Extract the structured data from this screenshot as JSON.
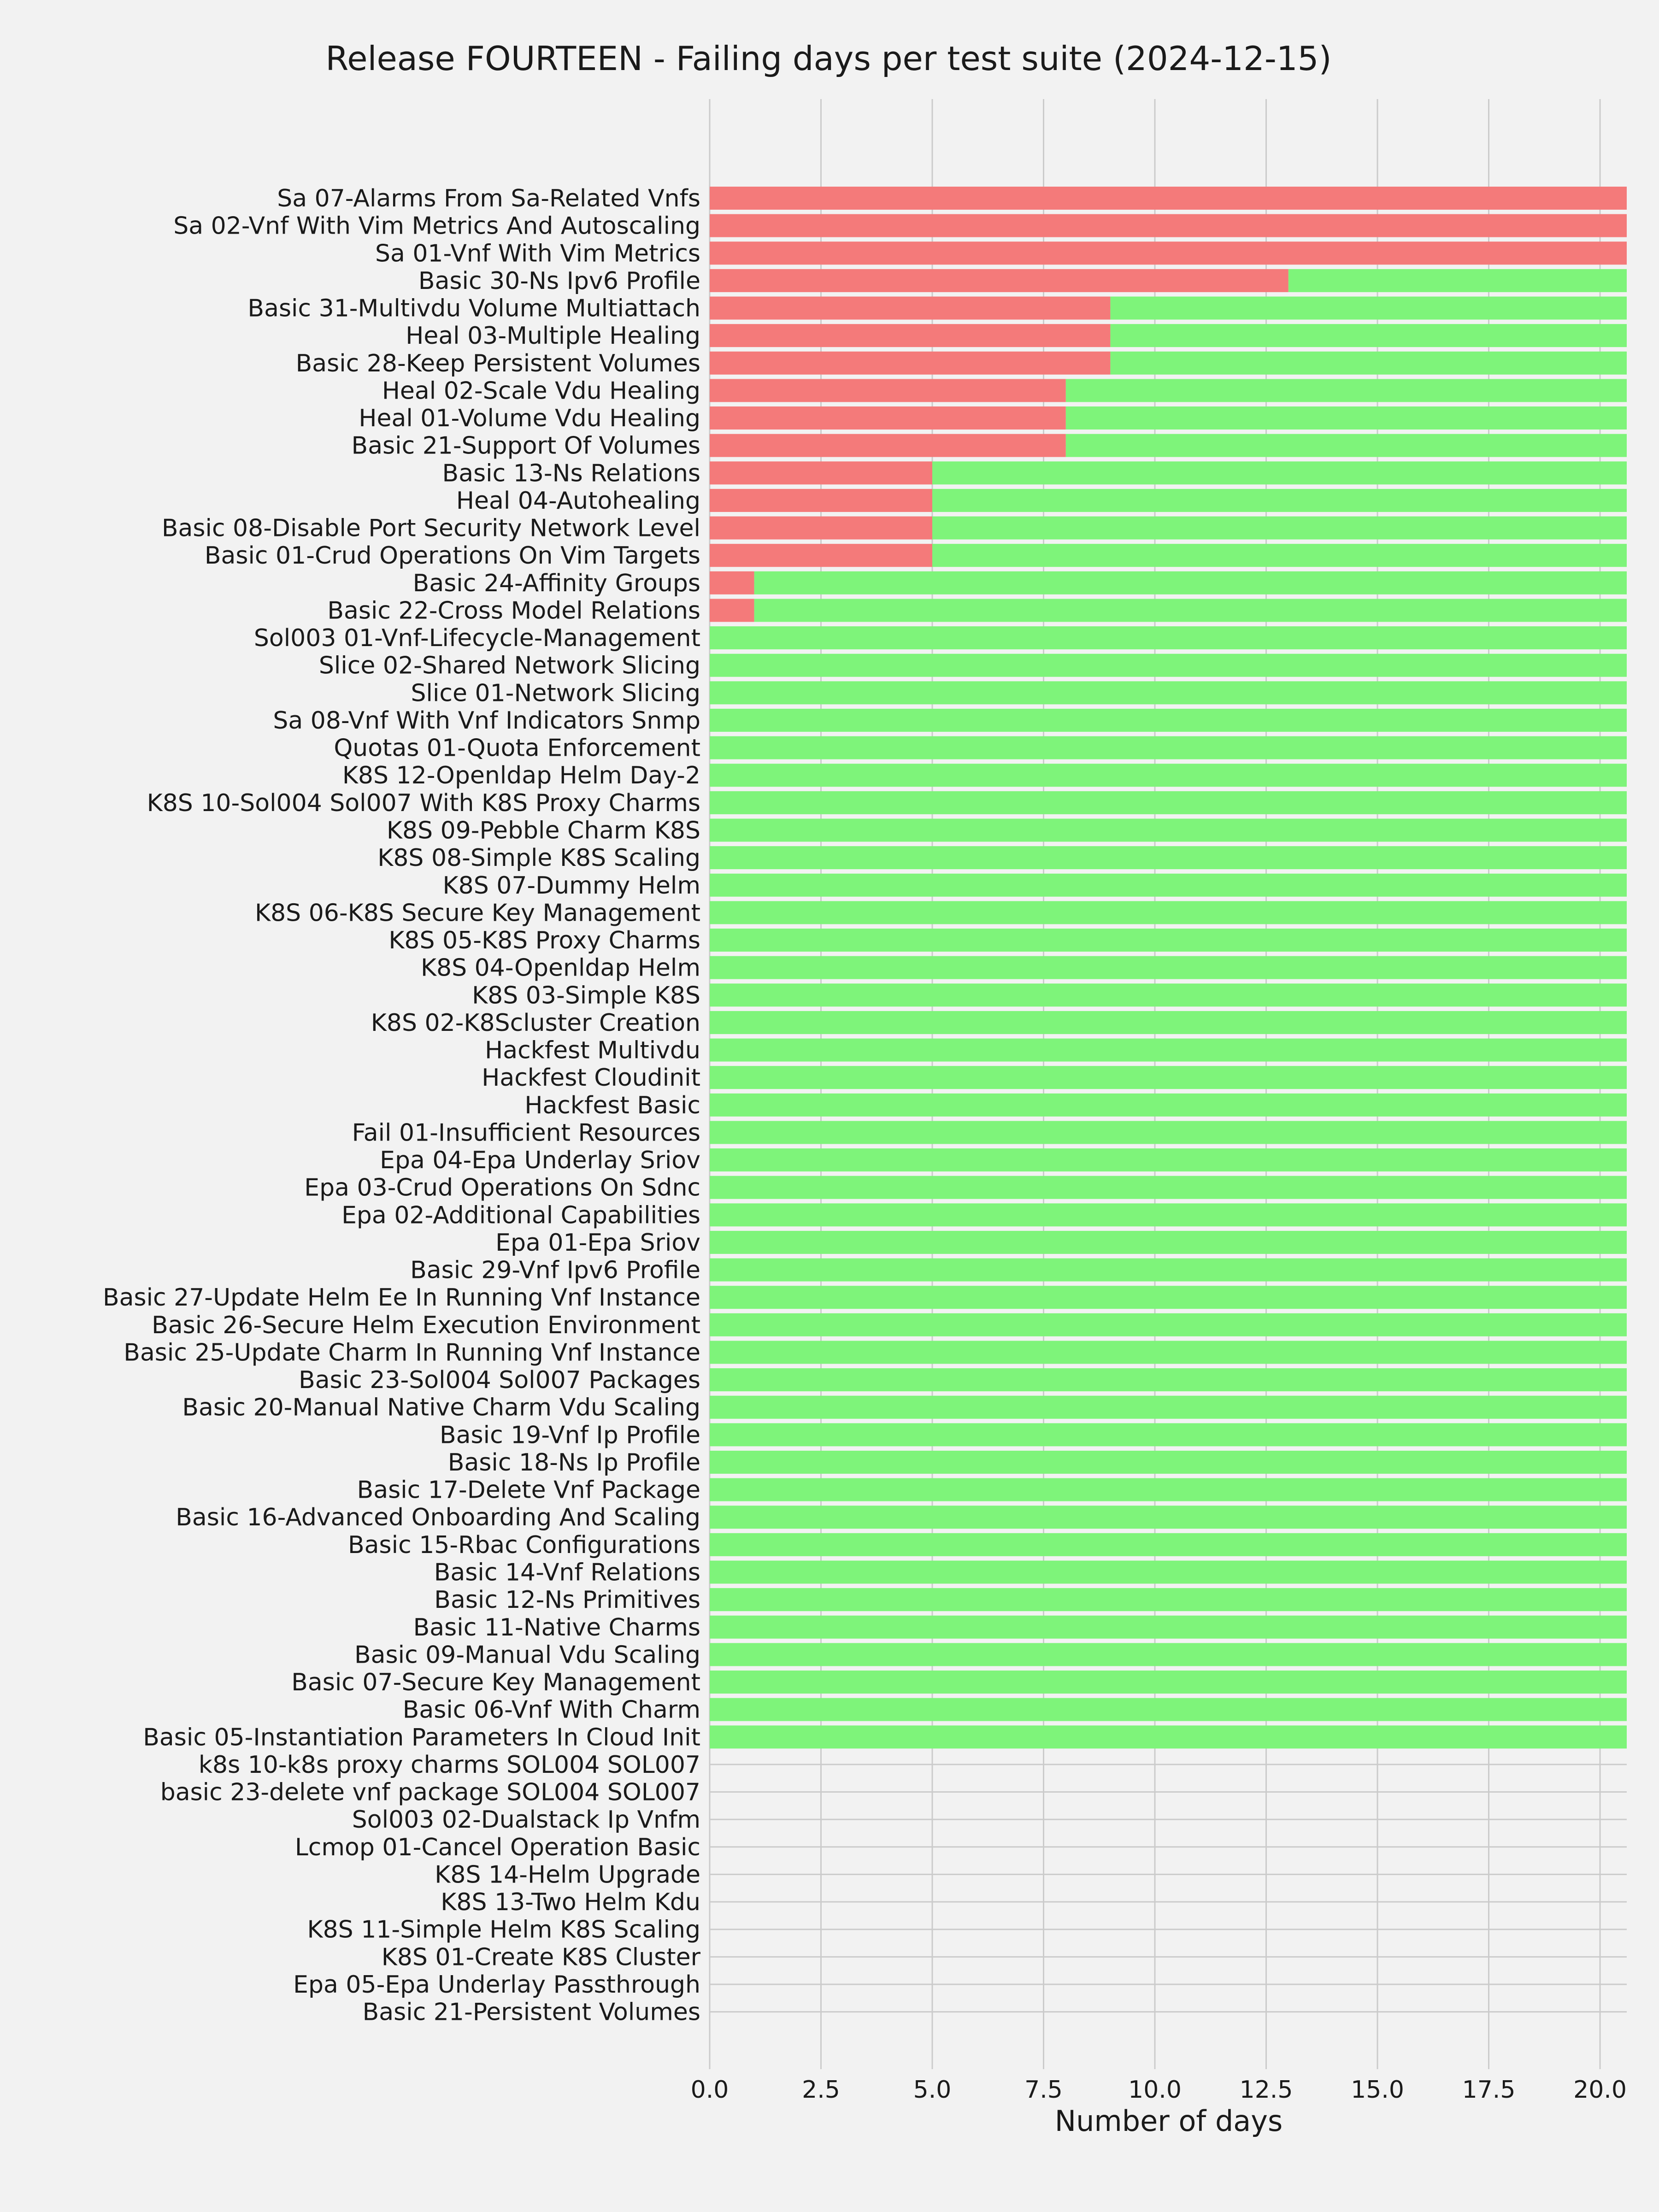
{
  "chart_data": {
    "type": "bar",
    "orientation": "horizontal",
    "stacked": true,
    "title": "Release FOURTEEN - Failing days per test suite (2024-12-15)",
    "xlabel": "Number of days",
    "ylabel": "",
    "xlim": [
      0,
      20.6
    ],
    "xticks": [
      "0.0",
      "2.5",
      "5.0",
      "7.5",
      "10.0",
      "12.5",
      "15.0",
      "17.5",
      "20.0"
    ],
    "grid": true,
    "legend": "none",
    "colors": {
      "failing": "#f47a7a",
      "passing": "#7ef47a",
      "background": "#f2f2f2",
      "grid": "#cbcbcb"
    },
    "categories": [
      "Sa 07-Alarms From Sa-Related Vnfs",
      "Sa 02-Vnf With Vim Metrics And Autoscaling",
      "Sa 01-Vnf With Vim Metrics",
      "Basic 30-Ns Ipv6 Profile",
      "Basic 31-Multivdu Volume Multiattach",
      "Heal 03-Multiple Healing",
      "Basic 28-Keep Persistent Volumes",
      "Heal 02-Scale Vdu Healing",
      "Heal 01-Volume Vdu Healing",
      "Basic 21-Support Of Volumes",
      "Basic 13-Ns Relations",
      "Heal 04-Autohealing",
      "Basic 08-Disable Port Security Network Level",
      "Basic 01-Crud Operations On Vim Targets",
      "Basic 24-Affinity Groups",
      "Basic 22-Cross Model Relations",
      "Sol003 01-Vnf-Lifecycle-Management",
      "Slice 02-Shared Network Slicing",
      "Slice 01-Network Slicing",
      "Sa 08-Vnf With Vnf Indicators Snmp",
      "Quotas 01-Quota Enforcement",
      "K8S 12-Openldap Helm Day-2",
      "K8S 10-Sol004 Sol007 With K8S Proxy Charms",
      "K8S 09-Pebble Charm K8S",
      "K8S 08-Simple K8S Scaling",
      "K8S 07-Dummy Helm",
      "K8S 06-K8S Secure Key Management",
      "K8S 05-K8S Proxy Charms",
      "K8S 04-Openldap Helm",
      "K8S 03-Simple K8S",
      "K8S 02-K8Scluster Creation",
      "Hackfest Multivdu",
      "Hackfest Cloudinit",
      "Hackfest Basic",
      "Fail 01-Insufficient Resources",
      "Epa 04-Epa Underlay Sriov",
      "Epa 03-Crud Operations On Sdnc",
      "Epa 02-Additional Capabilities",
      "Epa 01-Epa Sriov",
      "Basic 29-Vnf Ipv6 Profile",
      "Basic 27-Update Helm Ee In Running Vnf Instance",
      "Basic 26-Secure Helm Execution Environment",
      "Basic 25-Update Charm In Running Vnf Instance",
      "Basic 23-Sol004 Sol007 Packages",
      "Basic 20-Manual Native Charm Vdu Scaling",
      "Basic 19-Vnf Ip Profile",
      "Basic 18-Ns Ip Profile",
      "Basic 17-Delete Vnf Package",
      "Basic 16-Advanced Onboarding And Scaling",
      "Basic 15-Rbac Configurations",
      "Basic 14-Vnf Relations",
      "Basic 12-Ns Primitives",
      "Basic 11-Native Charms",
      "Basic 09-Manual Vdu Scaling",
      "Basic 07-Secure Key Management",
      "Basic 06-Vnf With Charm",
      "Basic 05-Instantiation Parameters In Cloud Init",
      "k8s 10-k8s proxy charms SOL004 SOL007",
      "basic 23-delete vnf package SOL004 SOL007",
      "Sol003 02-Dualstack Ip Vnfm",
      "Lcmop 01-Cancel Operation Basic",
      "K8S 14-Helm Upgrade",
      "K8S 13-Two Helm Kdu",
      "K8S 11-Simple Helm K8S Scaling",
      "K8S 01-Create K8S Cluster",
      "Epa 05-Epa Underlay Passthrough",
      "Basic 21-Persistent Volumes"
    ],
    "series": [
      {
        "key": "failing",
        "values": [
          20.6,
          20.6,
          20.6,
          13,
          9,
          9,
          9,
          8,
          8,
          8,
          5,
          5,
          5,
          5,
          1,
          1,
          0,
          0,
          0,
          0,
          0,
          0,
          0,
          0,
          0,
          0,
          0,
          0,
          0,
          0,
          0,
          0,
          0,
          0,
          0,
          0,
          0,
          0,
          0,
          0,
          0,
          0,
          0,
          0,
          0,
          0,
          0,
          0,
          0,
          0,
          0,
          0,
          0,
          0,
          0,
          0,
          0,
          0,
          0,
          0,
          0,
          0,
          0,
          0,
          0,
          0,
          0
        ]
      },
      {
        "key": "passing",
        "values": [
          0,
          0,
          0,
          7.6,
          11.6,
          11.6,
          11.6,
          12.6,
          12.6,
          12.6,
          15.6,
          15.6,
          15.6,
          15.6,
          19.6,
          19.6,
          20.6,
          20.6,
          20.6,
          20.6,
          20.6,
          20.6,
          20.6,
          20.6,
          20.6,
          20.6,
          20.6,
          20.6,
          20.6,
          20.6,
          20.6,
          20.6,
          20.6,
          20.6,
          20.6,
          20.6,
          20.6,
          20.6,
          20.6,
          20.6,
          20.6,
          20.6,
          20.6,
          20.6,
          20.6,
          20.6,
          20.6,
          20.6,
          20.6,
          20.6,
          20.6,
          20.6,
          20.6,
          20.6,
          20.6,
          20.6,
          20.6,
          0,
          0,
          0,
          0,
          0,
          0,
          0,
          0,
          0,
          0
        ]
      }
    ]
  }
}
